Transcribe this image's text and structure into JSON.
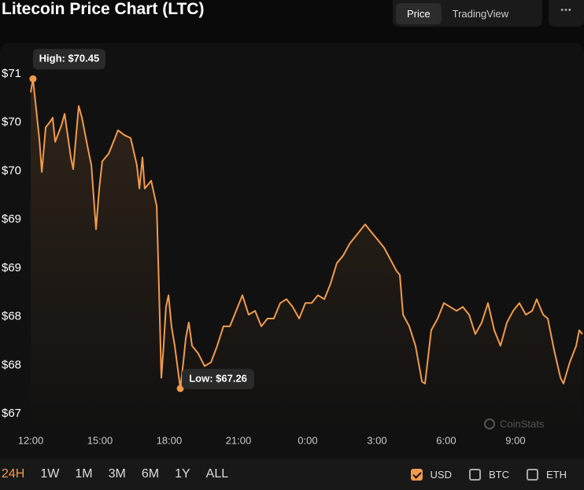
{
  "header": {
    "title": "Litecoin Price Chart (LTC)",
    "tabs": [
      {
        "label": "Price",
        "active": true
      },
      {
        "label": "TradingView",
        "active": false
      }
    ],
    "menu": "•••"
  },
  "chart_data": {
    "type": "line",
    "color": "#f29a4c",
    "xlim": [
      0,
      23.9
    ],
    "xticks": [
      {
        "value": 0,
        "label": "12:00"
      },
      {
        "value": 3,
        "label": "15:00"
      },
      {
        "value": 6,
        "label": "18:00"
      },
      {
        "value": 9,
        "label": "21:00"
      },
      {
        "value": 12,
        "label": "0:00"
      },
      {
        "value": 15,
        "label": "3:00"
      },
      {
        "value": 18,
        "label": "6:00"
      },
      {
        "value": 21,
        "label": "9:00"
      }
    ],
    "ylim": [
      66.85,
      70.78
    ],
    "yticks": [
      {
        "value": 70.5,
        "label": "$71"
      },
      {
        "value": 70,
        "label": "$70"
      },
      {
        "value": 69.5,
        "label": "$70"
      },
      {
        "value": 69,
        "label": "$69"
      },
      {
        "value": 68.5,
        "label": "$69"
      },
      {
        "value": 68,
        "label": "$68"
      },
      {
        "value": 67.5,
        "label": "$68"
      },
      {
        "value": 67,
        "label": "$67"
      }
    ],
    "x": [
      0,
      0.1,
      0.38,
      0.48,
      0.65,
      0.85,
      0.95,
      1.06,
      1.33,
      1.47,
      1.74,
      1.84,
      2.08,
      2.22,
      2.49,
      2.63,
      2.83,
      2.97,
      3.1,
      3.38,
      3.65,
      3.78,
      4.06,
      4.33,
      4.6,
      4.71,
      4.84,
      4.94,
      5.22,
      5.46,
      5.56,
      5.66,
      5.76,
      5.86,
      5.97,
      6.1,
      6.24,
      6.38,
      6.48,
      6.61,
      6.72,
      6.85,
      6.99,
      7.26,
      7.53,
      7.81,
      8.08,
      8.35,
      8.63,
      8.9,
      9.17,
      9.44,
      9.72,
      9.99,
      10.26,
      10.53,
      10.81,
      11.08,
      11.35,
      11.63,
      11.9,
      12.17,
      12.44,
      12.72,
      12.99,
      13.26,
      13.54,
      13.81,
      14.08,
      14.35,
      14.49,
      14.76,
      15.04,
      15.31,
      15.58,
      15.85,
      15.99,
      16.13,
      16.4,
      16.67,
      16.95,
      17.08,
      17.35,
      17.63,
      17.9,
      18.17,
      18.45,
      18.72,
      18.99,
      19.26,
      19.54,
      19.81,
      20.08,
      20.35,
      20.63,
      20.9,
      21.17,
      21.45,
      21.72,
      21.92,
      22.2,
      22.4,
      22.67,
      22.95,
      23.08,
      23.35,
      23.63,
      23.76,
      23.9
    ],
    "values": [
      70.31,
      70.45,
      69.82,
      69.49,
      69.95,
      70.01,
      70.05,
      69.8,
      69.97,
      70.09,
      69.64,
      69.52,
      70.17,
      70.05,
      69.72,
      69.56,
      68.9,
      69.32,
      69.6,
      69.68,
      69.84,
      69.92,
      69.87,
      69.84,
      69.56,
      69.32,
      69.64,
      69.32,
      69.4,
      69.14,
      68.26,
      67.37,
      67.7,
      68.1,
      68.22,
      67.9,
      67.7,
      67.45,
      67.26,
      67.53,
      67.78,
      67.94,
      67.7,
      67.62,
      67.49,
      67.53,
      67.7,
      67.9,
      67.9,
      68.06,
      68.22,
      68.02,
      68.06,
      67.9,
      67.98,
      67.98,
      68.14,
      68.18,
      68.1,
      67.98,
      68.14,
      68.14,
      68.22,
      68.18,
      68.34,
      68.55,
      68.63,
      68.75,
      68.83,
      68.91,
      68.95,
      68.87,
      68.79,
      68.71,
      68.59,
      68.47,
      68.43,
      68.02,
      67.9,
      67.7,
      67.33,
      67.31,
      67.86,
      67.98,
      68.14,
      68.1,
      68.06,
      68.1,
      68.02,
      67.82,
      67.94,
      68.14,
      67.86,
      67.7,
      67.94,
      68.06,
      68.14,
      68.02,
      68.06,
      68.18,
      68.02,
      67.98,
      67.66,
      67.37,
      67.31,
      67.53,
      67.7,
      67.86,
      67.82
    ],
    "annotations": [
      {
        "text": "High: $70.45",
        "x": 0.1,
        "y": 70.45
      },
      {
        "text": "Low: $67.26",
        "x": 6.48,
        "y": 67.26
      }
    ],
    "watermark": "CoinStats"
  },
  "footer": {
    "ranges": [
      {
        "label": "24H",
        "active": true
      },
      {
        "label": "1W",
        "active": false
      },
      {
        "label": "1M",
        "active": false
      },
      {
        "label": "3M",
        "active": false
      },
      {
        "label": "6M",
        "active": false
      },
      {
        "label": "1Y",
        "active": false
      },
      {
        "label": "ALL",
        "active": false
      }
    ],
    "currencies": [
      {
        "label": "USD",
        "checked": true
      },
      {
        "label": "BTC",
        "checked": false
      },
      {
        "label": "ETH",
        "checked": false
      }
    ]
  }
}
